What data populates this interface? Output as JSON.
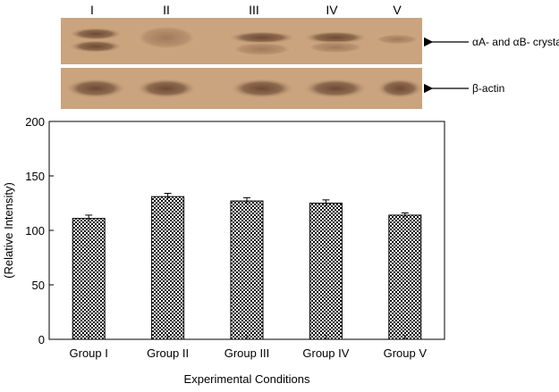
{
  "blot": {
    "lanes": [
      "I",
      "II",
      "III",
      "IV",
      "V"
    ],
    "bands": [
      {
        "label": "αA- and αB- crystallin"
      },
      {
        "label": "β-actin"
      }
    ]
  },
  "chart_data": {
    "type": "bar",
    "categories": [
      "Group I",
      "Group II",
      "Group III",
      "Group IV",
      "Group V"
    ],
    "values": [
      111,
      131,
      127,
      125,
      114
    ],
    "errors": [
      3,
      3,
      3,
      3,
      2
    ],
    "title": "",
    "xlabel": "Experimental Conditions",
    "ylabel": "(Relative Intensity)",
    "ylim": [
      0,
      200
    ],
    "yticks": [
      0,
      50,
      100,
      150,
      200
    ],
    "bar_pattern": "checkerboard",
    "grid": false
  }
}
